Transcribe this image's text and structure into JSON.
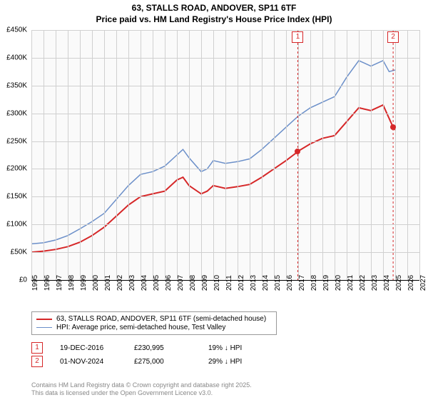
{
  "title": {
    "line1": "63, STALLS ROAD, ANDOVER, SP11 6TF",
    "line2": "Price paid vs. HM Land Registry's House Price Index (HPI)"
  },
  "chart": {
    "type": "line",
    "background_color": "#fafafa",
    "grid_color": "#d0d0d0",
    "xlim": [
      1995,
      2027
    ],
    "ylim": [
      0,
      450000
    ],
    "ytick_step": 50000,
    "yticks": [
      "£0",
      "£50K",
      "£100K",
      "£150K",
      "£200K",
      "£250K",
      "£300K",
      "£350K",
      "£400K",
      "£450K"
    ],
    "xticks": [
      1995,
      1996,
      1997,
      1998,
      1999,
      2000,
      2001,
      2002,
      2003,
      2004,
      2005,
      2006,
      2007,
      2008,
      2009,
      2010,
      2011,
      2012,
      2013,
      2014,
      2015,
      2016,
      2017,
      2018,
      2019,
      2020,
      2021,
      2022,
      2023,
      2024,
      2025,
      2026,
      2027
    ],
    "series": [
      {
        "name": "property",
        "label": "63, STALLS ROAD, ANDOVER, SP11 6TF (semi-detached house)",
        "color": "#d62728",
        "line_width": 2,
        "points": [
          [
            1995,
            50000
          ],
          [
            1996,
            52000
          ],
          [
            1997,
            55000
          ],
          [
            1998,
            60000
          ],
          [
            1999,
            68000
          ],
          [
            2000,
            80000
          ],
          [
            2001,
            95000
          ],
          [
            2002,
            115000
          ],
          [
            2003,
            135000
          ],
          [
            2004,
            150000
          ],
          [
            2005,
            155000
          ],
          [
            2006,
            160000
          ],
          [
            2007,
            180000
          ],
          [
            2007.5,
            185000
          ],
          [
            2008,
            170000
          ],
          [
            2009,
            155000
          ],
          [
            2009.5,
            160000
          ],
          [
            2010,
            170000
          ],
          [
            2011,
            165000
          ],
          [
            2012,
            168000
          ],
          [
            2013,
            172000
          ],
          [
            2014,
            185000
          ],
          [
            2015,
            200000
          ],
          [
            2016,
            215000
          ],
          [
            2016.97,
            230995
          ],
          [
            2017,
            232000
          ],
          [
            2018,
            245000
          ],
          [
            2019,
            255000
          ],
          [
            2020,
            260000
          ],
          [
            2021,
            285000
          ],
          [
            2022,
            310000
          ],
          [
            2023,
            305000
          ],
          [
            2024,
            315000
          ],
          [
            2024.83,
            275000
          ],
          [
            2025,
            270000
          ]
        ]
      },
      {
        "name": "hpi",
        "label": "HPI: Average price, semi-detached house, Test Valley",
        "color": "#6b8fc9",
        "line_width": 1.5,
        "points": [
          [
            1995,
            65000
          ],
          [
            1996,
            67000
          ],
          [
            1997,
            72000
          ],
          [
            1998,
            80000
          ],
          [
            1999,
            92000
          ],
          [
            2000,
            105000
          ],
          [
            2001,
            120000
          ],
          [
            2002,
            145000
          ],
          [
            2003,
            170000
          ],
          [
            2004,
            190000
          ],
          [
            2005,
            195000
          ],
          [
            2006,
            205000
          ],
          [
            2007,
            225000
          ],
          [
            2007.5,
            235000
          ],
          [
            2008,
            220000
          ],
          [
            2009,
            195000
          ],
          [
            2009.5,
            200000
          ],
          [
            2010,
            215000
          ],
          [
            2011,
            210000
          ],
          [
            2012,
            213000
          ],
          [
            2013,
            218000
          ],
          [
            2014,
            235000
          ],
          [
            2015,
            255000
          ],
          [
            2016,
            275000
          ],
          [
            2017,
            295000
          ],
          [
            2018,
            310000
          ],
          [
            2019,
            320000
          ],
          [
            2020,
            330000
          ],
          [
            2021,
            365000
          ],
          [
            2022,
            395000
          ],
          [
            2023,
            385000
          ],
          [
            2024,
            395000
          ],
          [
            2024.5,
            375000
          ],
          [
            2025,
            378000
          ]
        ]
      }
    ],
    "sale_markers": [
      {
        "n": "1",
        "year": 2016.97,
        "price": 230995
      },
      {
        "n": "2",
        "year": 2024.83,
        "price": 275000
      }
    ]
  },
  "legend": {
    "items": [
      {
        "color": "#d62728",
        "width": 2,
        "label": "63, STALLS ROAD, ANDOVER, SP11 6TF (semi-detached house)"
      },
      {
        "color": "#6b8fc9",
        "width": 1.5,
        "label": "HPI: Average price, semi-detached house, Test Valley"
      }
    ]
  },
  "sales": [
    {
      "n": "1",
      "date": "19-DEC-2016",
      "price": "£230,995",
      "vs": "19% ↓ HPI"
    },
    {
      "n": "2",
      "date": "01-NOV-2024",
      "price": "£275,000",
      "vs": "29% ↓ HPI"
    }
  ],
  "footer": {
    "line1": "Contains HM Land Registry data © Crown copyright and database right 2025.",
    "line2": "This data is licensed under the Open Government Licence v3.0."
  }
}
